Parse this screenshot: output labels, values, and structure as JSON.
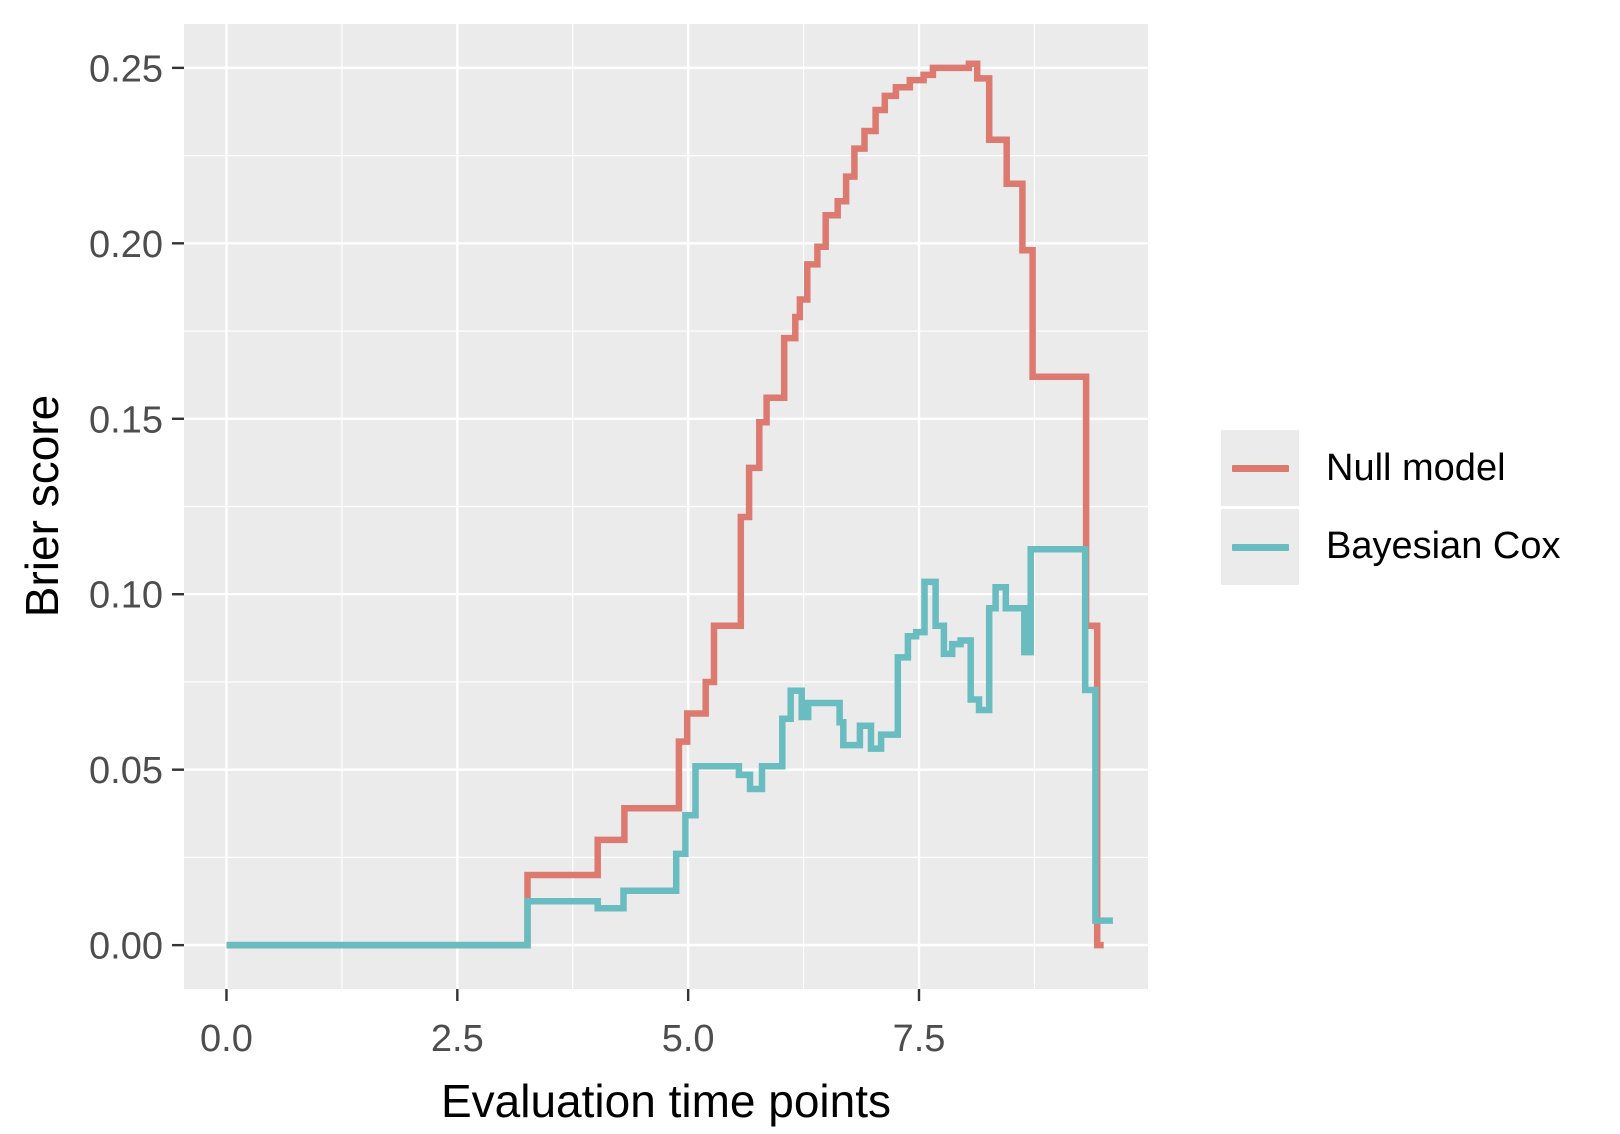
{
  "chart_data": {
    "type": "line",
    "subtype": "step",
    "title": "",
    "xlabel": "Evaluation time points",
    "ylabel": "Brier score",
    "legend_position": "right",
    "grid": "on",
    "panel_bg": "#EBEBEB",
    "grid_color": "#FFFFFF",
    "tick_mark_color": "#333333",
    "tick_label_color": "#4D4D4D",
    "xlim": [
      -0.46,
      9.98
    ],
    "ylim": [
      -0.0125,
      0.2625
    ],
    "x_ticks": [
      0,
      2.5,
      5,
      7.5
    ],
    "x_tick_labels": [
      "0.0",
      "2.5",
      "5.0",
      "7.5"
    ],
    "x_minor_ticks": [
      1.25,
      3.75,
      6.25,
      8.75
    ],
    "y_ticks": [
      0,
      0.05,
      0.1,
      0.15,
      0.2,
      0.25
    ],
    "y_tick_labels": [
      "0.00",
      "0.05",
      "0.10",
      "0.15",
      "0.20",
      "0.25"
    ],
    "y_minor_ticks": [
      0.025,
      0.075,
      0.125,
      0.175,
      0.225
    ],
    "series": [
      {
        "name": "Null model",
        "color": "#DD7A70",
        "x_end": 9.5,
        "steps": [
          [
            0,
            0
          ],
          [
            3.26,
            0.02
          ],
          [
            4.02,
            0.03
          ],
          [
            4.31,
            0.039
          ],
          [
            4.9,
            0.058
          ],
          [
            4.99,
            0.066
          ],
          [
            5.19,
            0.075
          ],
          [
            5.28,
            0.091
          ],
          [
            5.57,
            0.122
          ],
          [
            5.66,
            0.136
          ],
          [
            5.77,
            0.149
          ],
          [
            5.85,
            0.156
          ],
          [
            6.04,
            0.173
          ],
          [
            6.16,
            0.179
          ],
          [
            6.21,
            0.184
          ],
          [
            6.29,
            0.194
          ],
          [
            6.4,
            0.199
          ],
          [
            6.49,
            0.208
          ],
          [
            6.62,
            0.212
          ],
          [
            6.71,
            0.219
          ],
          [
            6.8,
            0.227
          ],
          [
            6.91,
            0.232
          ],
          [
            7.03,
            0.238
          ],
          [
            7.13,
            0.242
          ],
          [
            7.25,
            0.2445
          ],
          [
            7.4,
            0.2465
          ],
          [
            7.55,
            0.248
          ],
          [
            7.65,
            0.25
          ],
          [
            8.04,
            0.2512
          ],
          [
            8.13,
            0.247
          ],
          [
            8.26,
            0.2295
          ],
          [
            8.45,
            0.217
          ],
          [
            8.62,
            0.198
          ],
          [
            8.73,
            0.162
          ],
          [
            9.31,
            0.091
          ],
          [
            9.43,
            0.0
          ]
        ]
      },
      {
        "name": "Bayesian Cox",
        "color": "#69BCBF",
        "x_end": 9.6,
        "steps": [
          [
            0,
            0
          ],
          [
            3.26,
            0.0125
          ],
          [
            4.02,
            0.0105
          ],
          [
            4.3,
            0.0155
          ],
          [
            4.87,
            0.026
          ],
          [
            4.97,
            0.037
          ],
          [
            5.08,
            0.051
          ],
          [
            5.55,
            0.0485
          ],
          [
            5.67,
            0.0445
          ],
          [
            5.8,
            0.051
          ],
          [
            6.02,
            0.0645
          ],
          [
            6.11,
            0.0725
          ],
          [
            6.23,
            0.065
          ],
          [
            6.3,
            0.069
          ],
          [
            6.64,
            0.0635
          ],
          [
            6.68,
            0.057
          ],
          [
            6.86,
            0.0625
          ],
          [
            6.98,
            0.056
          ],
          [
            7.09,
            0.06
          ],
          [
            7.27,
            0.082
          ],
          [
            7.38,
            0.088
          ],
          [
            7.47,
            0.0892
          ],
          [
            7.56,
            0.1035
          ],
          [
            7.68,
            0.091
          ],
          [
            7.77,
            0.083
          ],
          [
            7.86,
            0.0858
          ],
          [
            7.95,
            0.0868
          ],
          [
            8.06,
            0.07
          ],
          [
            8.15,
            0.067
          ],
          [
            8.26,
            0.096
          ],
          [
            8.33,
            0.102
          ],
          [
            8.44,
            0.096
          ],
          [
            8.64,
            0.0835
          ],
          [
            8.71,
            0.1128
          ],
          [
            9.3,
            0.0727
          ],
          [
            9.41,
            0.007
          ]
        ]
      }
    ]
  }
}
